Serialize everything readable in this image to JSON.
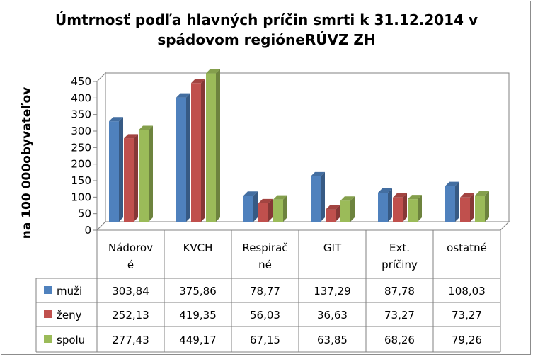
{
  "chart_data": {
    "type": "bar",
    "title_lines": [
      "Úmtrnosť podľa hlavných príčin smrti k 31.12.2014 v",
      "spádovom regióneRÚVZ ZH"
    ],
    "ylabel": "na 100 000obyvateľov",
    "ylim": [
      0,
      450
    ],
    "yticks": [
      "0",
      "50",
      "100",
      "150",
      "200",
      "250",
      "300",
      "350",
      "400",
      "450"
    ],
    "ytick_values": [
      0,
      50,
      100,
      150,
      200,
      250,
      300,
      350,
      400,
      450
    ],
    "categories": [
      [
        "Nádorov",
        "é"
      ],
      [
        "KVCH"
      ],
      [
        "Respirač",
        "né"
      ],
      [
        "GIT"
      ],
      [
        "Ext.",
        "príčiny"
      ],
      [
        "ostatné"
      ]
    ],
    "legend_placement": "data-table",
    "grid": false,
    "series": [
      {
        "name": "muži",
        "color": "#4f81bd",
        "values": [
          303.84,
          375.86,
          78.77,
          137.29,
          87.78,
          108.03
        ],
        "labels": [
          "303,84",
          "375,86",
          "78,77",
          "137,29",
          "87,78",
          "108,03"
        ]
      },
      {
        "name": "ženy",
        "color": "#c0504d",
        "values": [
          252.13,
          419.35,
          56.03,
          36.63,
          73.27,
          73.27
        ],
        "labels": [
          "252,13",
          "419,35",
          "56,03",
          "36,63",
          "73,27",
          "73,27"
        ]
      },
      {
        "name": "spolu",
        "color": "#9bbb59",
        "values": [
          277.43,
          449.17,
          67.15,
          63.85,
          68.26,
          79.26
        ],
        "labels": [
          "277,43",
          "449,17",
          "67,15",
          "63,85",
          "68,26",
          "79,26"
        ]
      }
    ]
  }
}
